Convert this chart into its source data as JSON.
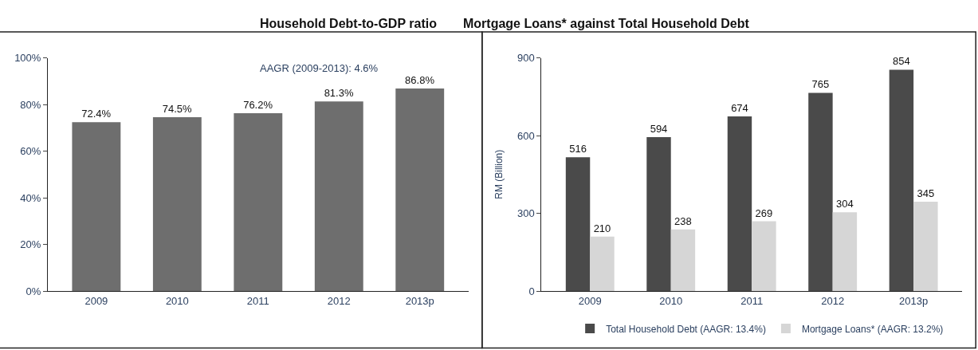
{
  "chart_data": [
    {
      "type": "bar",
      "title": "Household Debt-to-GDP ratio",
      "categories": [
        "2009",
        "2010",
        "2011",
        "2012",
        "2013p"
      ],
      "series": [
        {
          "color": "#6e6e6e",
          "values": [
            72.4,
            74.5,
            76.2,
            81.3,
            86.8
          ],
          "value_labels": [
            "72.4%",
            "74.5%",
            "76.2%",
            "81.3%",
            "86.8%"
          ]
        }
      ],
      "ylim": [
        0,
        100
      ],
      "yticks": [
        {
          "value": 0,
          "label": "0%"
        },
        {
          "value": 20,
          "label": "20%"
        },
        {
          "value": 40,
          "label": "40%"
        },
        {
          "value": 60,
          "label": "60%"
        },
        {
          "value": 80,
          "label": "80%"
        },
        {
          "value": 100,
          "label": "100%"
        }
      ],
      "annotations": [
        "AAGR (2009-2013): 4.6%"
      ]
    },
    {
      "type": "bar",
      "title": "Mortgage Loans* against Total Household Debt",
      "ylabel": "RM (Billion)",
      "categories": [
        "2009",
        "2010",
        "2011",
        "2012",
        "2013p"
      ],
      "series": [
        {
          "name": "Total Household Debt (AAGR: 13.4%)",
          "color": "#4a4a4a",
          "values": [
            516,
            594,
            674,
            765,
            854
          ]
        },
        {
          "name": "Mortgage Loans* (AAGR: 13.2%)",
          "color": "#d6d6d6",
          "values": [
            210,
            238,
            269,
            304,
            345
          ]
        }
      ],
      "ylim": [
        0,
        900
      ],
      "yticks": [
        0,
        300,
        600,
        900
      ],
      "data_labels": true,
      "legend": "bottom"
    }
  ]
}
